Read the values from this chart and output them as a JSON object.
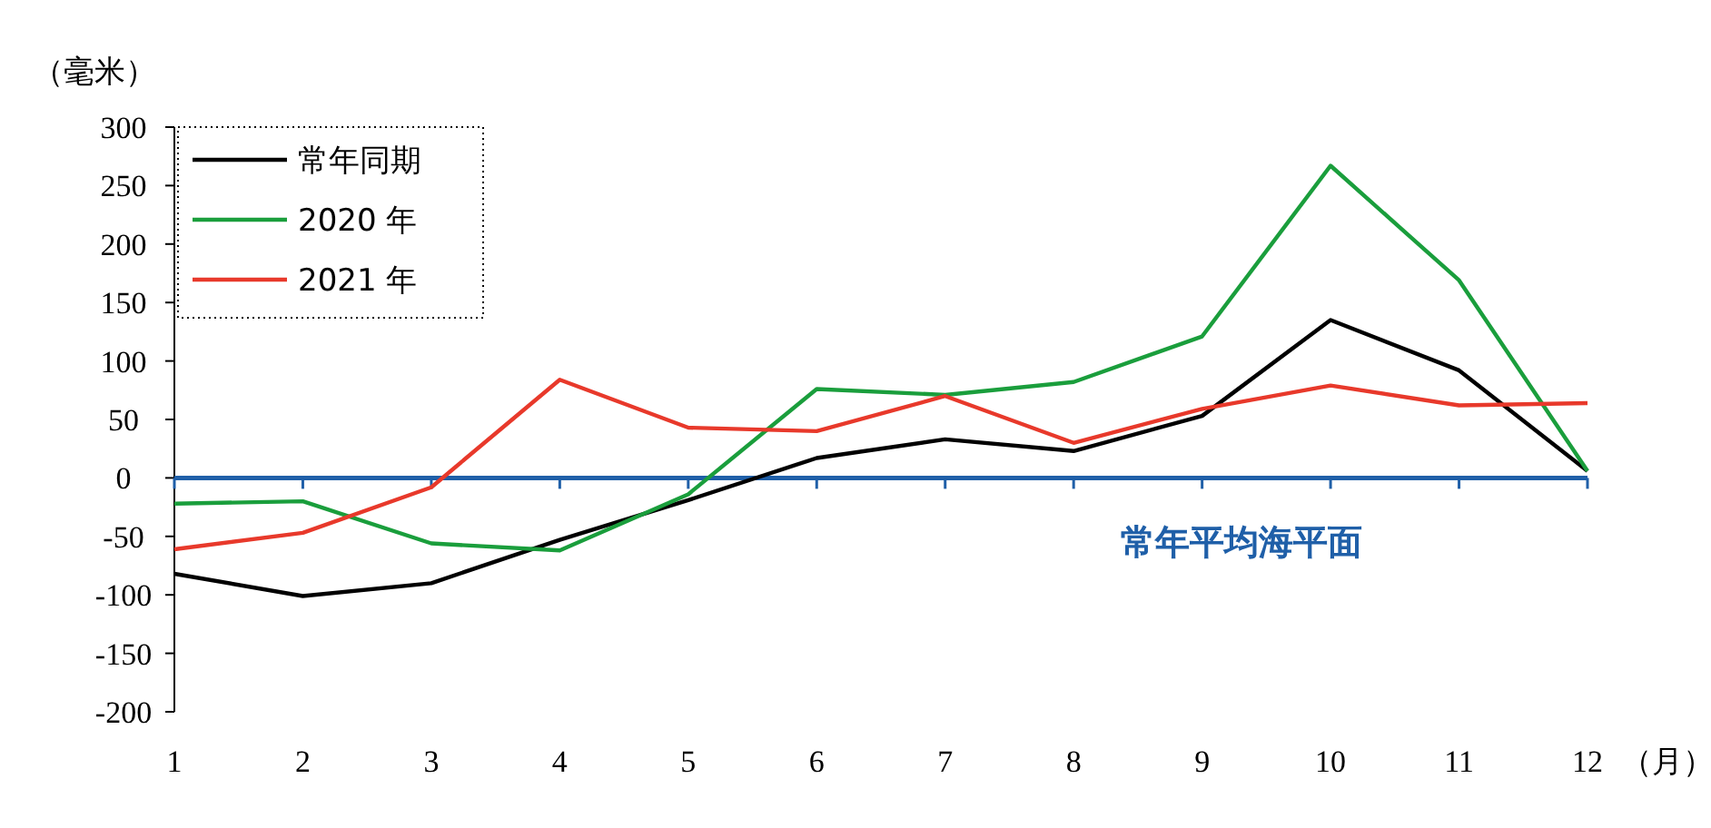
{
  "chart_data": {
    "type": "line",
    "ylabel": "（毫米）",
    "xlabel": "（月）",
    "x": [
      1,
      2,
      3,
      4,
      5,
      6,
      7,
      8,
      9,
      10,
      11,
      12
    ],
    "xlim": [
      1,
      12
    ],
    "xticks": [
      1,
      2,
      3,
      4,
      5,
      6,
      7,
      8,
      9,
      10,
      11,
      12
    ],
    "series": [
      {
        "name": "常年同期",
        "color": "#000000",
        "values": [
          -82,
          -101,
          -90,
          -53,
          -19,
          17,
          33,
          23,
          53,
          135,
          92,
          6
        ]
      },
      {
        "name": "2020 年",
        "color": "#1a9e3c",
        "values": [
          -22,
          -20,
          -56,
          -62,
          -14,
          76,
          71,
          82,
          121,
          267,
          169,
          6
        ]
      },
      {
        "name": "2021 年",
        "color": "#e8392b",
        "values": [
          -61,
          -47,
          -8,
          84,
          43,
          40,
          70,
          30,
          59,
          79,
          62,
          64
        ]
      }
    ],
    "ylim": [
      -200,
      300
    ],
    "yticks": [
      -200,
      -150,
      -100,
      -50,
      0,
      50,
      100,
      150,
      200,
      250,
      300
    ],
    "ref_lines": [
      {
        "axis": "y",
        "value": 0,
        "label": "常年平均海平面",
        "color": "#1f5fa8"
      }
    ],
    "grid": false,
    "legend": "top left",
    "marker": "none",
    "line_style": "solid"
  }
}
